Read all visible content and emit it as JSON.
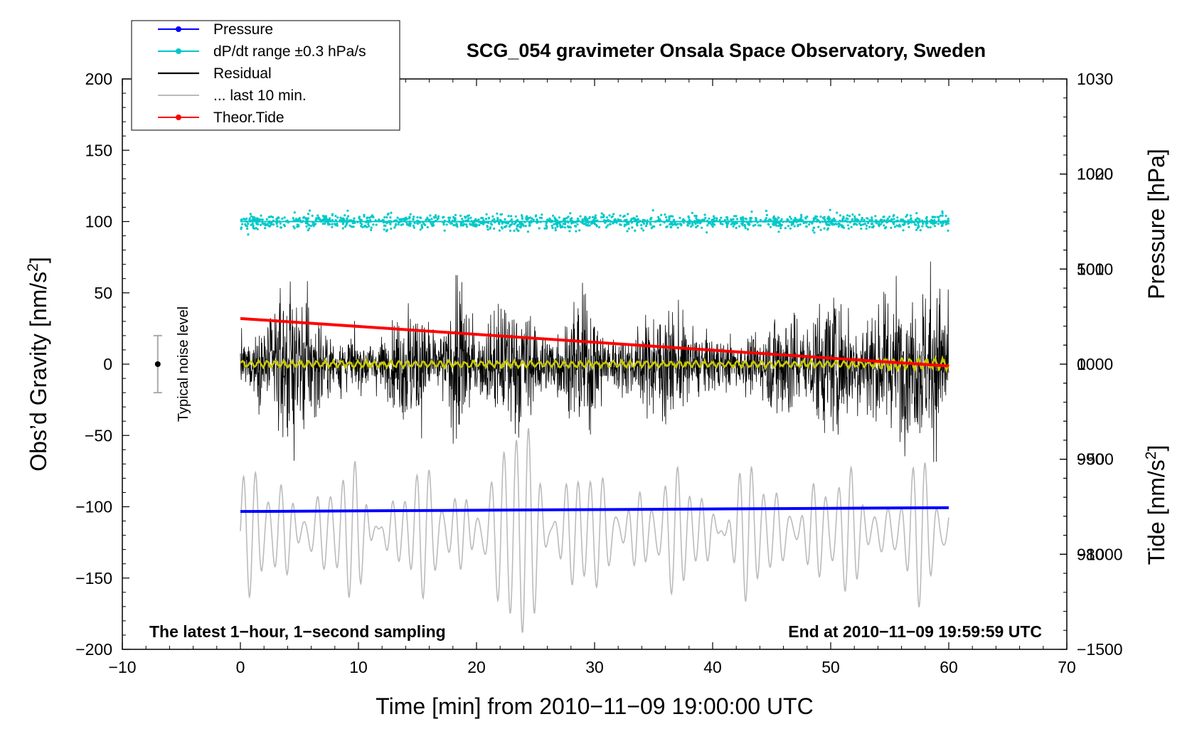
{
  "chart_data": {
    "type": "line",
    "title": "SCG_054 gravimeter Onsala Space Observatory, Sweden",
    "xlabel": "Time [min] from 2010−11−09 19:00:00 UTC",
    "ylabel": "Obs’d Gravity [nm/s2]",
    "ylabel_main": "Obs’d Gravity [nm/s",
    "ylabel_sup": "2",
    "ylabel_end": "]",
    "xlim": [
      -10,
      70
    ],
    "ylim": [
      -200,
      200
    ],
    "x_ticks": [
      -10,
      0,
      10,
      20,
      30,
      40,
      50,
      60,
      70
    ],
    "x_tick_labels": [
      "−10",
      "0",
      "10",
      "20",
      "30",
      "40",
      "50",
      "60",
      "70"
    ],
    "y_ticks": [
      -200,
      -150,
      -100,
      -50,
      0,
      50,
      100,
      150,
      200
    ],
    "y_tick_labels": [
      "−200",
      "−150",
      "−100",
      "−50",
      "0",
      "50",
      "100",
      "150",
      "200"
    ],
    "pressure_axis": {
      "label": "Pressure [hPa]",
      "ticks": [
        980,
        990,
        1000,
        1010,
        1020,
        1030
      ],
      "tick_labels": [
        "980",
        "990",
        "1000",
        "1010",
        "1020",
        "1030"
      ],
      "range": [
        970,
        1030
      ]
    },
    "tide_axis": {
      "label": "Tide [nm/s2]",
      "label_main": "Tide [nm/s",
      "label_sup": "2",
      "label_end": "]",
      "ticks": [
        -1500,
        -1000,
        -500,
        0,
        500,
        1000
      ],
      "tick_labels": [
        "−1500",
        "−1000",
        "−500",
        "0",
        "500",
        "1000"
      ],
      "range": [
        -1500,
        1500
      ]
    },
    "legend": {
      "position": "top-left",
      "entries": [
        {
          "label": "Pressure",
          "color": "#0000ff",
          "marker": true
        },
        {
          "label": "dP/dt range ±0.3 hPa/s",
          "color": "#00c8c8",
          "marker": true
        },
        {
          "label": "Residual",
          "color": "#000000",
          "marker": false
        },
        {
          "label": "... last 10 min.",
          "color": "#bbbbbb",
          "marker": false
        },
        {
          "label": "Theor.Tide",
          "color": "#ff0000",
          "marker": true
        }
      ]
    },
    "series": [
      {
        "name": "Pressure",
        "axis": "pressure",
        "color": "#0000ff",
        "x": [
          0,
          60
        ],
        "values": [
          984.5,
          984.9
        ]
      },
      {
        "name": "dP/dt range ±0.3 hPa/s",
        "axis": "gravity",
        "color": "#00c8c8",
        "style": "scatter",
        "center": 100,
        "spread": 12,
        "x_range": [
          0,
          60
        ]
      },
      {
        "name": "Residual",
        "axis": "gravity",
        "color": "#000000",
        "style": "noise",
        "center": 0,
        "amplitude_typical": 40,
        "x_range": [
          0,
          60
        ]
      },
      {
        "name": "Residual smoothed",
        "axis": "gravity",
        "color": "#c8c800",
        "style": "noise",
        "center": 0,
        "amplitude_typical": 3,
        "x_range": [
          0,
          60
        ]
      },
      {
        "name": "... last 10 min.",
        "axis": "gravity",
        "color": "#bbbbbb",
        "style": "oscillation",
        "center": -117,
        "amplitude_typical": 40,
        "x_range": [
          0,
          60
        ]
      },
      {
        "name": "Theor.Tide",
        "axis": "tide",
        "color": "#ff0000",
        "x": [
          0,
          60
        ],
        "values": [
          240,
          -10
        ]
      }
    ],
    "annotations": {
      "left_bottom": "The latest 1−hour, 1−second sampling",
      "right_bottom": "End at 2010−11−09 19:59:59 UTC",
      "noise_label": "Typical noise level",
      "noise_bar": {
        "x": -7,
        "center": 0,
        "half_range": 20
      }
    }
  }
}
